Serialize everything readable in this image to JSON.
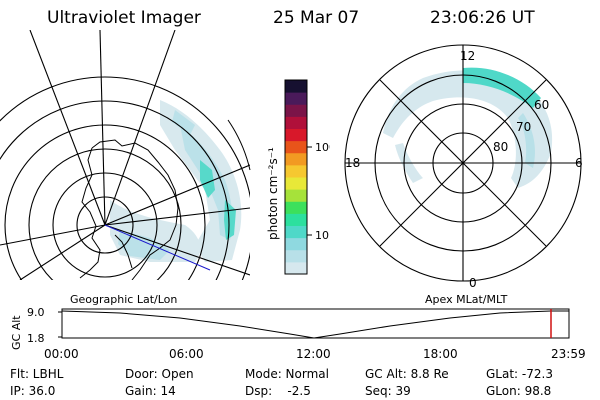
{
  "header": {
    "title": "Ultraviolet Imager",
    "date": "25 Mar 07",
    "time": "23:06:26 UT"
  },
  "colorbar": {
    "unit_label": "photon cm⁻²s⁻¹",
    "ticks": [
      "100",
      "10"
    ],
    "colors": [
      "#d6e8ee",
      "#b8e0e8",
      "#8fd9e0",
      "#4fd8c8",
      "#2ce09e",
      "#3ce05c",
      "#a6e23a",
      "#e8e838",
      "#f6c830",
      "#f29a22",
      "#e8541a",
      "#d8182a",
      "#b0103a",
      "#7a1448",
      "#4a1a5a",
      "#161030"
    ]
  },
  "map_labels": {
    "left": "Geographic Lat/Lon",
    "right": "Apex MLat/MLT"
  },
  "polar": {
    "mlt_labels": {
      "top": "12",
      "left": "18",
      "right": "6",
      "bottom": "0"
    },
    "lat_labels": [
      "60",
      "70",
      "80"
    ]
  },
  "altitude_plot": {
    "y_label": "GC Alt",
    "y_ticks": [
      "9.0",
      "1.8"
    ],
    "x_ticks": [
      "00:00",
      "06:00",
      "12:00",
      "18:00",
      "23:59"
    ],
    "marker_color": "#d01010"
  },
  "info": [
    [
      {
        "key": "flt",
        "text": "Flt: LBHL"
      },
      {
        "key": "door",
        "text": "Door: Open"
      },
      {
        "key": "mode",
        "text": "Mode: Normal"
      },
      {
        "key": "gcalt",
        "text": "GC Alt: 8.8 Re"
      },
      {
        "key": "glat",
        "text": "GLat: -72.3"
      }
    ],
    [
      {
        "key": "ip",
        "text": "IP: 36.0"
      },
      {
        "key": "gain",
        "text": "Gain: 14"
      },
      {
        "key": "dsp",
        "text": "Dsp:    -2.5"
      },
      {
        "key": "seq",
        "text": "Seq: 39"
      },
      {
        "key": "glon",
        "text": "GLon: 98.8"
      }
    ]
  ]
}
